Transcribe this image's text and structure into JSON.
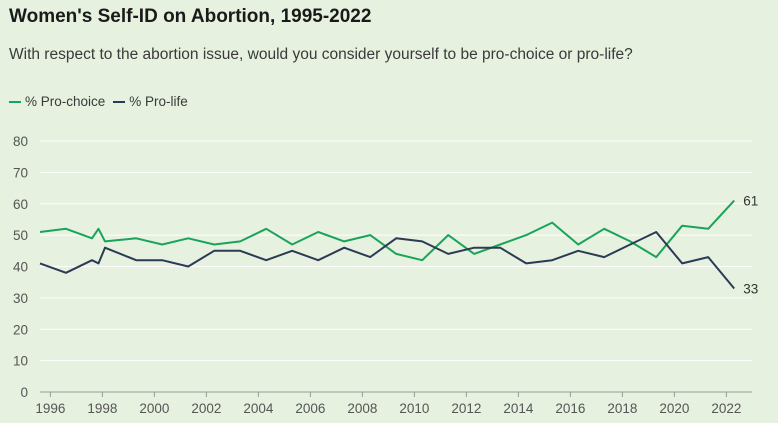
{
  "chart_data": {
    "type": "line",
    "title": "Women's Self-ID on Abortion, 1995-2022",
    "subtitle": "With respect to the abortion issue, would you consider yourself to be pro-choice or pro-life?",
    "xlabel": "",
    "ylabel": "",
    "xlim": [
      1995.6,
      2022.6
    ],
    "ylim": [
      0,
      80
    ],
    "yticks": [
      0,
      10,
      20,
      30,
      40,
      50,
      60,
      70,
      80
    ],
    "xticks": [
      1996,
      1998,
      2000,
      2002,
      2004,
      2006,
      2008,
      2010,
      2012,
      2014,
      2016,
      2018,
      2020,
      2022
    ],
    "grid": true,
    "legend_position": "top-left",
    "series": [
      {
        "name": "% Pro-choice",
        "color": "#1aa35a",
        "end_label": "61",
        "points": [
          [
            1995.6,
            51
          ],
          [
            1996.6,
            52
          ],
          [
            1997.6,
            49
          ],
          [
            1997.85,
            52
          ],
          [
            1998.1,
            48
          ],
          [
            1999.3,
            49
          ],
          [
            2000.3,
            47
          ],
          [
            2001.3,
            49
          ],
          [
            2002.3,
            47
          ],
          [
            2003.3,
            48
          ],
          [
            2004.3,
            52
          ],
          [
            2005.3,
            47
          ],
          [
            2006.3,
            51
          ],
          [
            2007.3,
            48
          ],
          [
            2008.3,
            50
          ],
          [
            2009.3,
            44
          ],
          [
            2010.3,
            42
          ],
          [
            2011.3,
            50
          ],
          [
            2012.3,
            44
          ],
          [
            2013.3,
            47
          ],
          [
            2014.3,
            50
          ],
          [
            2015.3,
            54
          ],
          [
            2016.3,
            47
          ],
          [
            2017.3,
            52
          ],
          [
            2018.3,
            48
          ],
          [
            2019.3,
            43
          ],
          [
            2020.3,
            53
          ],
          [
            2021.3,
            52
          ],
          [
            2022.3,
            61
          ]
        ]
      },
      {
        "name": "% Pro-life",
        "color": "#2b3a55",
        "end_label": "33",
        "points": [
          [
            1995.6,
            41
          ],
          [
            1996.6,
            38
          ],
          [
            1997.6,
            42
          ],
          [
            1997.85,
            41
          ],
          [
            1998.1,
            46
          ],
          [
            1999.3,
            42
          ],
          [
            2000.3,
            42
          ],
          [
            2001.3,
            40
          ],
          [
            2002.3,
            45
          ],
          [
            2003.3,
            45
          ],
          [
            2004.3,
            42
          ],
          [
            2005.3,
            45
          ],
          [
            2006.3,
            42
          ],
          [
            2007.3,
            46
          ],
          [
            2008.3,
            43
          ],
          [
            2009.3,
            49
          ],
          [
            2010.3,
            48
          ],
          [
            2011.3,
            44
          ],
          [
            2012.3,
            46
          ],
          [
            2013.3,
            46
          ],
          [
            2014.3,
            41
          ],
          [
            2015.3,
            42
          ],
          [
            2016.3,
            45
          ],
          [
            2017.3,
            43
          ],
          [
            2018.3,
            47
          ],
          [
            2019.3,
            51
          ],
          [
            2020.3,
            41
          ],
          [
            2021.3,
            43
          ],
          [
            2022.3,
            33
          ]
        ]
      }
    ]
  }
}
